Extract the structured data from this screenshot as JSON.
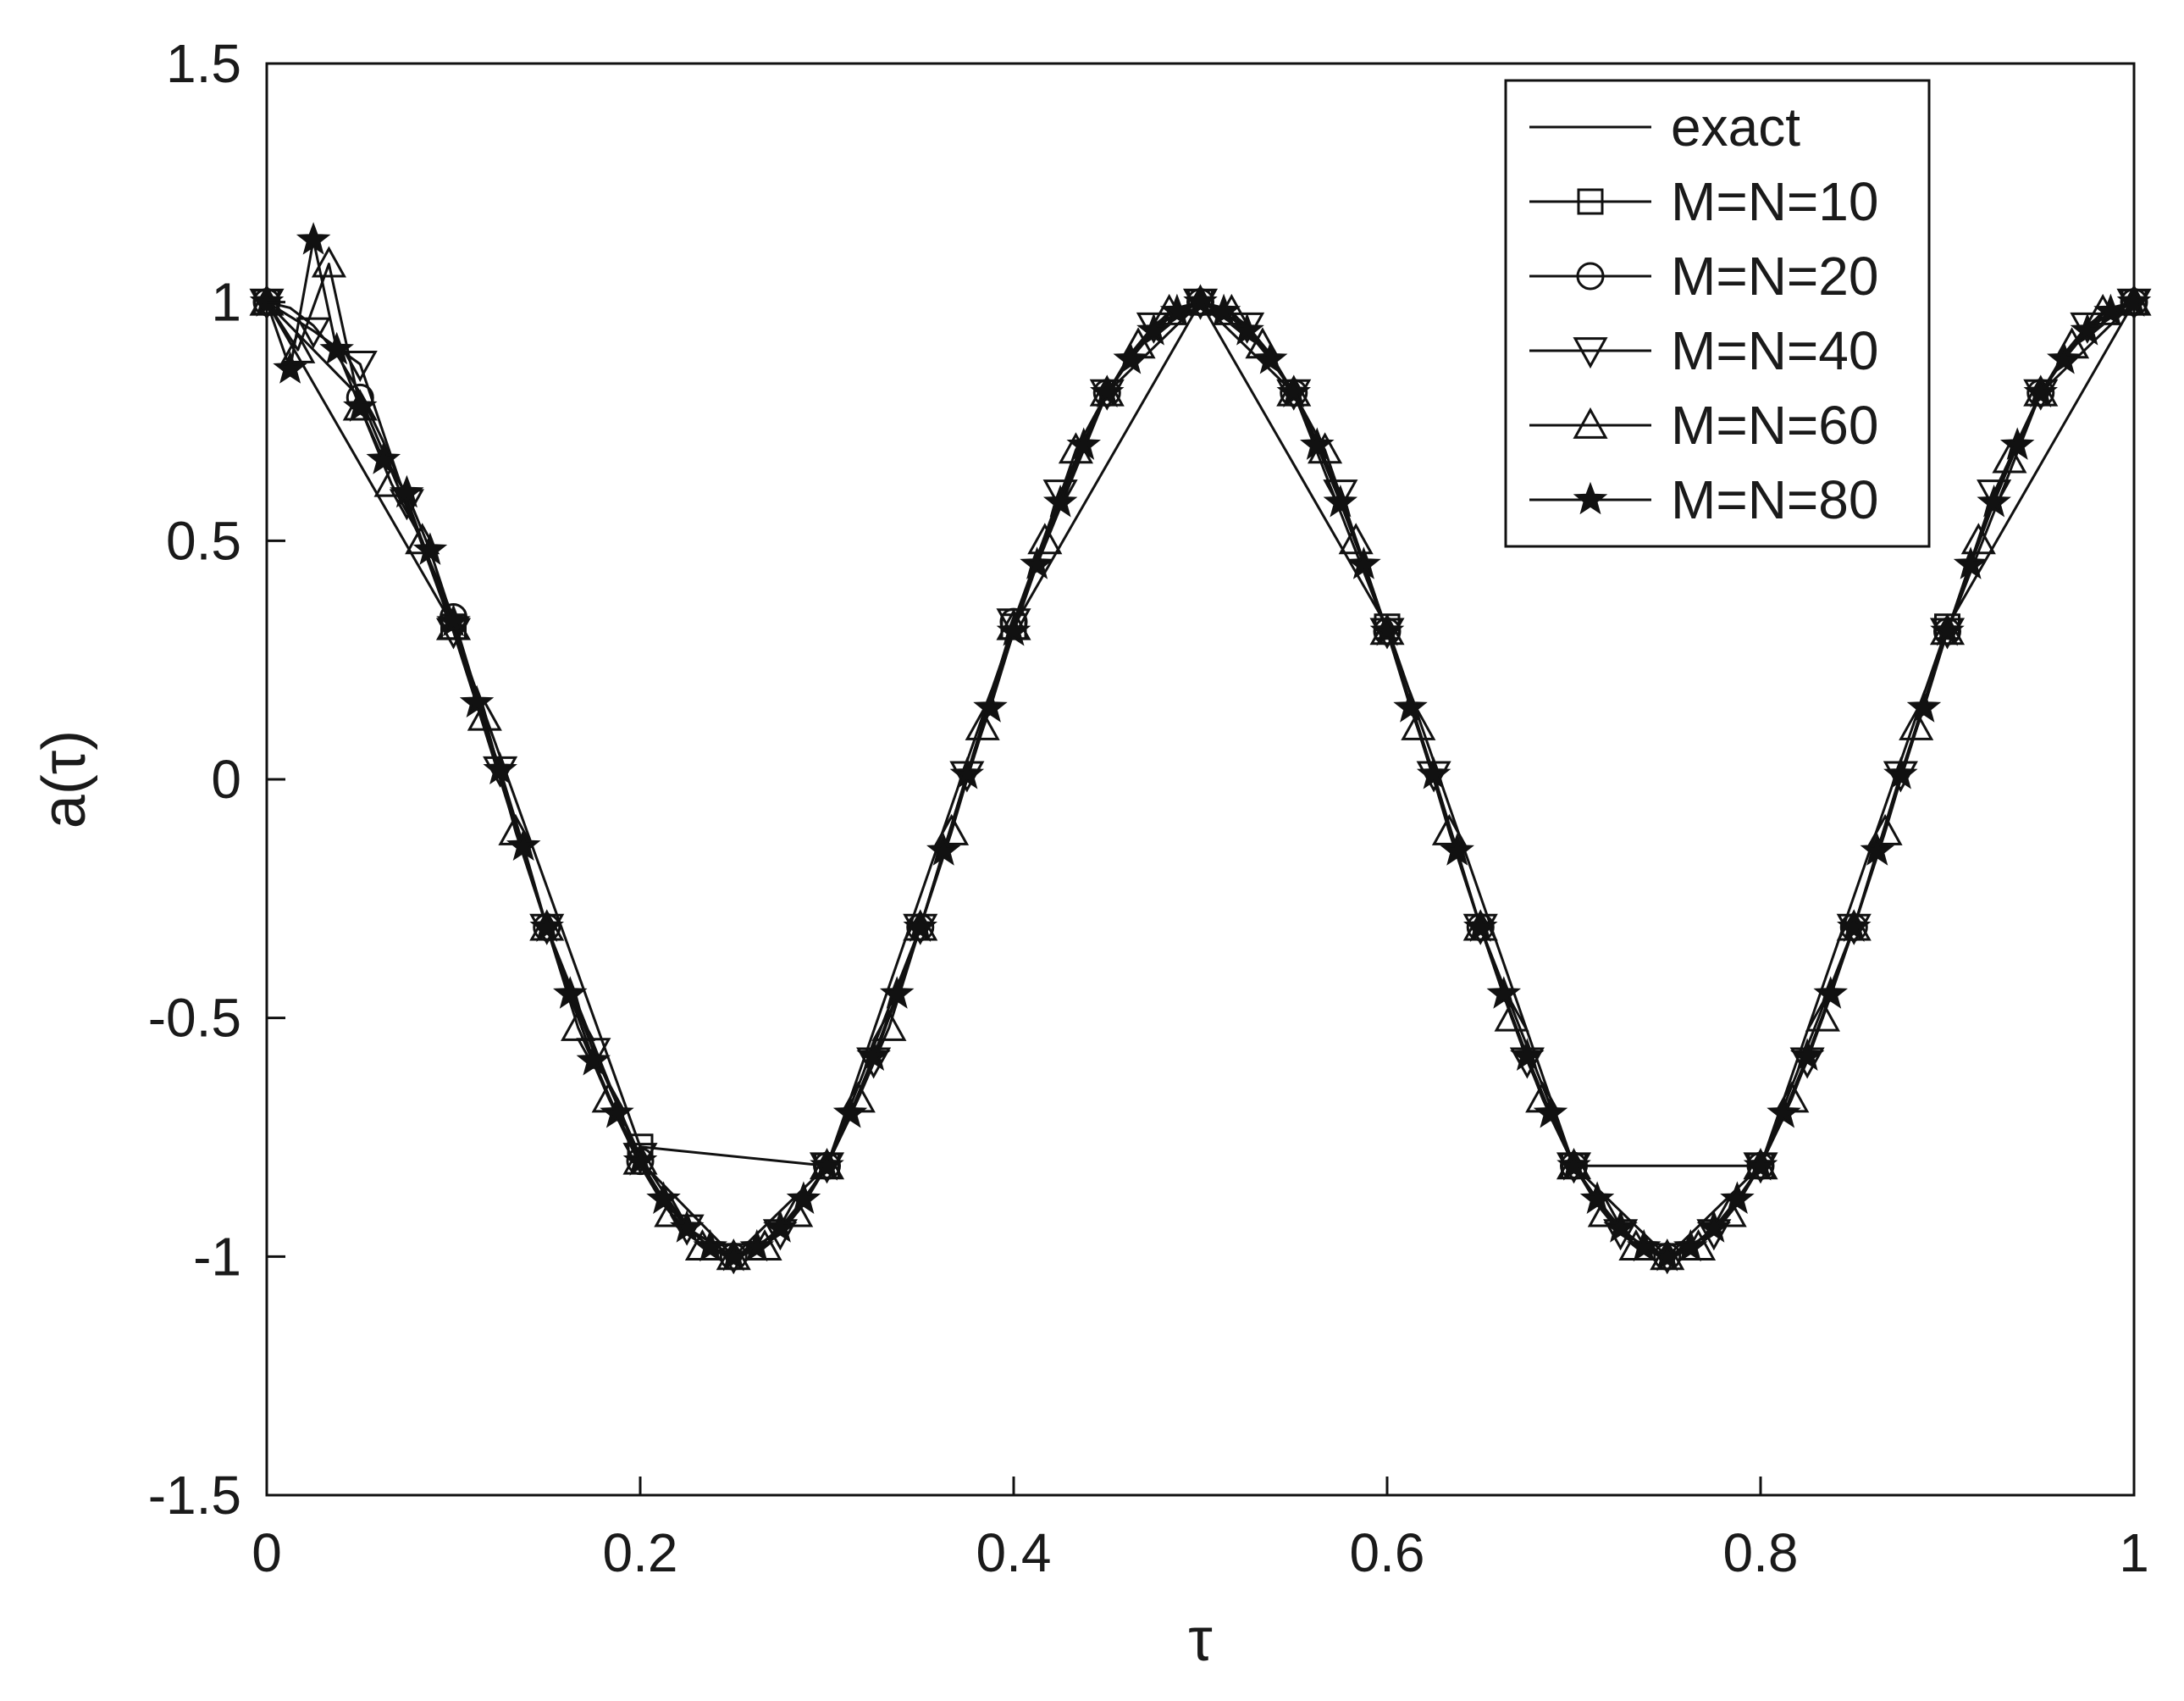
{
  "chart_data": {
    "type": "line",
    "xlabel": "τ",
    "ylabel": "a(τ)",
    "xlim": [
      0,
      1
    ],
    "ylim": [
      -1.5,
      1.5
    ],
    "xticks": [
      {
        "value": 0,
        "label": "0"
      },
      {
        "value": 0.2,
        "label": "0.2"
      },
      {
        "value": 0.4,
        "label": "0.4"
      },
      {
        "value": 0.6,
        "label": "0.6"
      },
      {
        "value": 0.8,
        "label": "0.8"
      },
      {
        "value": 1,
        "label": "1"
      }
    ],
    "yticks": [
      {
        "value": -1.5,
        "label": "-1.5"
      },
      {
        "value": -1,
        "label": "-1"
      },
      {
        "value": -0.5,
        "label": "-0.5"
      },
      {
        "value": 0,
        "label": "0"
      },
      {
        "value": 0.5,
        "label": "0.5"
      },
      {
        "value": 1,
        "label": "1"
      },
      {
        "value": 1.5,
        "label": "1.5"
      }
    ],
    "grid": false,
    "legend_position": "top-right",
    "line_color": "#111111",
    "series": [
      {
        "name": "exact",
        "marker": "none",
        "function": "cos(4*pi*tau)",
        "x": [
          0,
          0.0125,
          0.025,
          0.0375,
          0.05,
          0.0625,
          0.075,
          0.0875,
          0.1,
          0.1125,
          0.125,
          0.1375,
          0.15,
          0.1625,
          0.175,
          0.1875,
          0.2,
          0.2125,
          0.225,
          0.2375,
          0.25,
          0.2625,
          0.275,
          0.2875,
          0.3,
          0.3125,
          0.325,
          0.3375,
          0.35,
          0.3625,
          0.375,
          0.3875,
          0.4,
          0.4125,
          0.425,
          0.4375,
          0.45,
          0.4625,
          0.475,
          0.4875,
          0.5,
          0.5125,
          0.525,
          0.5375,
          0.55,
          0.5625,
          0.575,
          0.5875,
          0.6,
          0.6125,
          0.625,
          0.6375,
          0.65,
          0.6625,
          0.675,
          0.6875,
          0.7,
          0.7125,
          0.725,
          0.7375,
          0.75,
          0.7625,
          0.775,
          0.7875,
          0.8,
          0.8125,
          0.825,
          0.8375,
          0.85,
          0.8625,
          0.875,
          0.8875,
          0.9,
          0.9125,
          0.925,
          0.9375,
          0.95,
          0.9625,
          0.975,
          0.9875,
          1
        ],
        "y": [
          1,
          0.988,
          0.951,
          0.891,
          0.809,
          0.707,
          0.588,
          0.454,
          0.309,
          0.156,
          0,
          -0.156,
          -0.309,
          -0.454,
          -0.588,
          -0.707,
          -0.809,
          -0.891,
          -0.951,
          -0.988,
          -1,
          -0.988,
          -0.951,
          -0.891,
          -0.809,
          -0.707,
          -0.588,
          -0.454,
          -0.309,
          -0.156,
          0,
          0.156,
          0.309,
          0.454,
          0.588,
          0.707,
          0.809,
          0.891,
          0.951,
          0.988,
          1,
          0.988,
          0.951,
          0.891,
          0.809,
          0.707,
          0.588,
          0.454,
          0.309,
          0.156,
          0,
          -0.156,
          -0.309,
          -0.454,
          -0.588,
          -0.707,
          -0.809,
          -0.891,
          -0.951,
          -0.988,
          -1,
          -0.988,
          -0.951,
          -0.891,
          -0.809,
          -0.707,
          -0.588,
          -0.454,
          -0.309,
          -0.156,
          0,
          0.156,
          0.309,
          0.454,
          0.588,
          0.707,
          0.809,
          0.891,
          0.951,
          0.988,
          1
        ]
      },
      {
        "name": "M=N=10",
        "marker": "square",
        "x": [
          0,
          0.1,
          0.2,
          0.3,
          0.4,
          0.5,
          0.6,
          0.7,
          0.8,
          0.9,
          1
        ],
        "y": [
          1,
          0.32,
          -0.77,
          -0.81,
          0.32,
          1,
          0.32,
          -0.81,
          -0.81,
          0.32,
          1
        ]
      },
      {
        "name": "M=N=20",
        "marker": "circle",
        "x": [
          0,
          0.05,
          0.1,
          0.15,
          0.2,
          0.25,
          0.3,
          0.35,
          0.4,
          0.45,
          0.5,
          0.55,
          0.6,
          0.65,
          0.7,
          0.75,
          0.8,
          0.85,
          0.9,
          0.95,
          1
        ],
        "y": [
          1,
          0.8,
          0.34,
          -0.31,
          -0.8,
          -1,
          -0.81,
          -0.31,
          0.33,
          0.81,
          1,
          0.81,
          0.31,
          -0.31,
          -0.81,
          -1,
          -0.81,
          -0.31,
          0.31,
          0.81,
          1
        ]
      },
      {
        "name": "M=N=40",
        "marker": "triangle-down",
        "x": [
          0,
          0.025,
          0.05,
          0.075,
          0.1,
          0.125,
          0.15,
          0.175,
          0.2,
          0.225,
          0.25,
          0.275,
          0.3,
          0.325,
          0.35,
          0.375,
          0.4,
          0.425,
          0.45,
          0.475,
          0.5,
          0.525,
          0.55,
          0.575,
          0.6,
          0.625,
          0.65,
          0.675,
          0.7,
          0.725,
          0.75,
          0.775,
          0.8,
          0.825,
          0.85,
          0.875,
          0.9,
          0.925,
          0.95,
          0.975,
          1
        ],
        "y": [
          1,
          0.94,
          0.87,
          0.58,
          0.31,
          0.02,
          -0.31,
          -0.57,
          -0.79,
          -0.94,
          -1,
          -0.95,
          -0.81,
          -0.59,
          -0.31,
          0.01,
          0.33,
          0.6,
          0.81,
          0.95,
          1,
          0.95,
          0.81,
          0.6,
          0.31,
          0.01,
          -0.31,
          -0.59,
          -0.81,
          -0.95,
          -1,
          -0.95,
          -0.81,
          -0.59,
          -0.31,
          0.01,
          0.31,
          0.6,
          0.81,
          0.95,
          1
        ]
      },
      {
        "name": "M=N=60",
        "marker": "triangle-up",
        "x": [
          0,
          0.0167,
          0.0333,
          0.05,
          0.0667,
          0.0833,
          0.1,
          0.1167,
          0.1333,
          0.15,
          0.1667,
          0.1833,
          0.2,
          0.2167,
          0.2333,
          0.25,
          0.2667,
          0.2833,
          0.3,
          0.3167,
          0.3333,
          0.35,
          0.3667,
          0.3833,
          0.4,
          0.4167,
          0.4333,
          0.45,
          0.4667,
          0.4833,
          0.5,
          0.5167,
          0.5333,
          0.55,
          0.5667,
          0.5833,
          0.6,
          0.6167,
          0.6333,
          0.65,
          0.6667,
          0.6833,
          0.7,
          0.7167,
          0.7333,
          0.75,
          0.7667,
          0.7833,
          0.8,
          0.8167,
          0.8333,
          0.85,
          0.8667,
          0.8833,
          0.9,
          0.9167,
          0.9333,
          0.95,
          0.9667,
          0.9833,
          1
        ],
        "y": [
          1,
          0.9,
          1.08,
          0.78,
          0.62,
          0.5,
          0.32,
          0.13,
          -0.11,
          -0.31,
          -0.52,
          -0.67,
          -0.8,
          -0.91,
          -0.98,
          -1,
          -0.98,
          -0.91,
          -0.81,
          -0.67,
          -0.52,
          -0.31,
          -0.11,
          0.11,
          0.32,
          0.5,
          0.69,
          0.81,
          0.91,
          0.98,
          1,
          0.98,
          0.91,
          0.81,
          0.69,
          0.5,
          0.31,
          0.11,
          -0.11,
          -0.31,
          -0.5,
          -0.67,
          -0.81,
          -0.91,
          -0.98,
          -1,
          -0.98,
          -0.91,
          -0.81,
          -0.67,
          -0.5,
          -0.31,
          -0.11,
          0.11,
          0.31,
          0.5,
          0.67,
          0.81,
          0.91,
          0.98,
          1
        ]
      },
      {
        "name": "M=N=80",
        "marker": "star",
        "x": [
          0,
          0.0125,
          0.025,
          0.0375,
          0.05,
          0.0625,
          0.075,
          0.0875,
          0.1,
          0.1125,
          0.125,
          0.1375,
          0.15,
          0.1625,
          0.175,
          0.1875,
          0.2,
          0.2125,
          0.225,
          0.2375,
          0.25,
          0.2625,
          0.275,
          0.2875,
          0.3,
          0.3125,
          0.325,
          0.3375,
          0.35,
          0.3625,
          0.375,
          0.3875,
          0.4,
          0.4125,
          0.425,
          0.4375,
          0.45,
          0.4625,
          0.475,
          0.4875,
          0.5,
          0.5125,
          0.525,
          0.5375,
          0.55,
          0.5625,
          0.575,
          0.5875,
          0.6,
          0.6125,
          0.625,
          0.6375,
          0.65,
          0.6625,
          0.675,
          0.6875,
          0.7,
          0.7125,
          0.725,
          0.7375,
          0.75,
          0.7625,
          0.775,
          0.7875,
          0.8,
          0.8125,
          0.825,
          0.8375,
          0.85,
          0.8625,
          0.875,
          0.8875,
          0.9,
          0.9125,
          0.925,
          0.9375,
          0.95,
          0.9625,
          0.975,
          0.9875,
          1
        ],
        "y": [
          1,
          0.86,
          1.13,
          0.9,
          0.78,
          0.67,
          0.6,
          0.48,
          0.33,
          0.16,
          0.02,
          -0.14,
          -0.31,
          -0.45,
          -0.59,
          -0.7,
          -0.8,
          -0.88,
          -0.94,
          -0.98,
          -1,
          -0.98,
          -0.94,
          -0.88,
          -0.81,
          -0.7,
          -0.58,
          -0.45,
          -0.31,
          -0.15,
          0.01,
          0.15,
          0.31,
          0.45,
          0.58,
          0.7,
          0.81,
          0.88,
          0.94,
          0.98,
          1,
          0.98,
          0.94,
          0.88,
          0.81,
          0.7,
          0.58,
          0.45,
          0.31,
          0.15,
          0.01,
          -0.15,
          -0.31,
          -0.45,
          -0.58,
          -0.7,
          -0.81,
          -0.88,
          -0.94,
          -0.98,
          -1,
          -0.98,
          -0.94,
          -0.88,
          -0.81,
          -0.7,
          -0.58,
          -0.45,
          -0.31,
          -0.15,
          0.01,
          0.15,
          0.31,
          0.45,
          0.58,
          0.7,
          0.81,
          0.88,
          0.94,
          0.98,
          1
        ]
      }
    ]
  }
}
